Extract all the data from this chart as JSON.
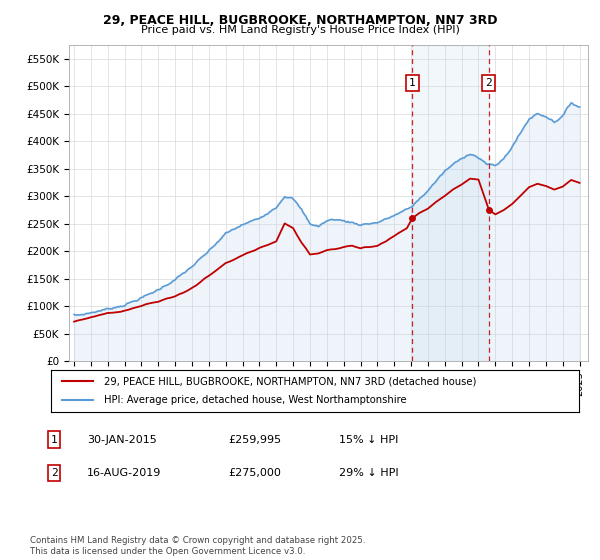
{
  "title": "29, PEACE HILL, BUGBROOKE, NORTHAMPTON, NN7 3RD",
  "subtitle": "Price paid vs. HM Land Registry's House Price Index (HPI)",
  "ylim": [
    0,
    575000
  ],
  "yticks": [
    0,
    50000,
    100000,
    150000,
    200000,
    250000,
    300000,
    350000,
    400000,
    450000,
    500000,
    550000
  ],
  "ytick_labels": [
    "£0",
    "£50K",
    "£100K",
    "£150K",
    "£200K",
    "£250K",
    "£300K",
    "£350K",
    "£400K",
    "£450K",
    "£500K",
    "£550K"
  ],
  "hpi_color": "#5b9bd5",
  "price_color": "#c00000",
  "hpi_fill_alpha": 0.25,
  "hpi_fill_color": "#bdd7ee",
  "marker_color": "#c00000",
  "vline_color": "#c00000",
  "sale1_date": 2015.08,
  "sale1_price": 259995,
  "sale2_date": 2019.62,
  "sale2_price": 275000,
  "legend_label_price": "29, PEACE HILL, BUGBROOKE, NORTHAMPTON, NN7 3RD (detached house)",
  "legend_label_hpi": "HPI: Average price, detached house, West Northamptonshire",
  "footnote": "Contains HM Land Registry data © Crown copyright and database right 2025.\nThis data is licensed under the Open Government Licence v3.0.",
  "background_color": "#ffffff",
  "grid_color": "#d9d9d9",
  "hpi_years": [
    1995.0,
    1995.083,
    1995.167,
    1995.25,
    1995.333,
    1995.417,
    1995.5,
    1995.583,
    1995.667,
    1995.75,
    1995.833,
    1995.917,
    1996.0,
    1996.083,
    1996.167,
    1996.25,
    1996.333,
    1996.417,
    1996.5,
    1996.583,
    1996.667,
    1996.75,
    1996.833,
    1996.917,
    1997.0,
    1997.083,
    1997.167,
    1997.25,
    1997.333,
    1997.417,
    1997.5,
    1997.583,
    1997.667,
    1997.75,
    1997.833,
    1997.917,
    1998.0,
    1998.083,
    1998.167,
    1998.25,
    1998.333,
    1998.417,
    1998.5,
    1998.583,
    1998.667,
    1998.75,
    1998.833,
    1998.917,
    1999.0,
    1999.083,
    1999.167,
    1999.25,
    1999.333,
    1999.417,
    1999.5,
    1999.583,
    1999.667,
    1999.75,
    1999.833,
    1999.917,
    2000.0,
    2000.083,
    2000.167,
    2000.25,
    2000.333,
    2000.417,
    2000.5,
    2000.583,
    2000.667,
    2000.75,
    2000.833,
    2000.917,
    2001.0,
    2001.083,
    2001.167,
    2001.25,
    2001.333,
    2001.417,
    2001.5,
    2001.583,
    2001.667,
    2001.75,
    2001.833,
    2001.917,
    2002.0,
    2002.083,
    2002.167,
    2002.25,
    2002.333,
    2002.417,
    2002.5,
    2002.583,
    2002.667,
    2002.75,
    2002.833,
    2002.917,
    2003.0,
    2003.083,
    2003.167,
    2003.25,
    2003.333,
    2003.417,
    2003.5,
    2003.583,
    2003.667,
    2003.75,
    2003.833,
    2003.917,
    2004.0,
    2004.083,
    2004.167,
    2004.25,
    2004.333,
    2004.417,
    2004.5,
    2004.583,
    2004.667,
    2004.75,
    2004.833,
    2004.917,
    2005.0,
    2005.083,
    2005.167,
    2005.25,
    2005.333,
    2005.417,
    2005.5,
    2005.583,
    2005.667,
    2005.75,
    2005.833,
    2005.917,
    2006.0,
    2006.083,
    2006.167,
    2006.25,
    2006.333,
    2006.417,
    2006.5,
    2006.583,
    2006.667,
    2006.75,
    2006.833,
    2006.917,
    2007.0,
    2007.083,
    2007.167,
    2007.25,
    2007.333,
    2007.417,
    2007.5,
    2007.583,
    2007.667,
    2007.75,
    2007.833,
    2007.917,
    2008.0,
    2008.083,
    2008.167,
    2008.25,
    2008.333,
    2008.417,
    2008.5,
    2008.583,
    2008.667,
    2008.75,
    2008.833,
    2008.917,
    2009.0,
    2009.083,
    2009.167,
    2009.25,
    2009.333,
    2009.417,
    2009.5,
    2009.583,
    2009.667,
    2009.75,
    2009.833,
    2009.917,
    2010.0,
    2010.083,
    2010.167,
    2010.25,
    2010.333,
    2010.417,
    2010.5,
    2010.583,
    2010.667,
    2010.75,
    2010.833,
    2010.917,
    2011.0,
    2011.083,
    2011.167,
    2011.25,
    2011.333,
    2011.417,
    2011.5,
    2011.583,
    2011.667,
    2011.75,
    2011.833,
    2011.917,
    2012.0,
    2012.083,
    2012.167,
    2012.25,
    2012.333,
    2012.417,
    2012.5,
    2012.583,
    2012.667,
    2012.75,
    2012.833,
    2012.917,
    2013.0,
    2013.083,
    2013.167,
    2013.25,
    2013.333,
    2013.417,
    2013.5,
    2013.583,
    2013.667,
    2013.75,
    2013.833,
    2013.917,
    2014.0,
    2014.083,
    2014.167,
    2014.25,
    2014.333,
    2014.417,
    2014.5,
    2014.583,
    2014.667,
    2014.75,
    2014.833,
    2014.917,
    2015.0,
    2015.083,
    2015.167,
    2015.25,
    2015.333,
    2015.417,
    2015.5,
    2015.583,
    2015.667,
    2015.75,
    2015.833,
    2015.917,
    2016.0,
    2016.083,
    2016.167,
    2016.25,
    2016.333,
    2016.417,
    2016.5,
    2016.583,
    2016.667,
    2016.75,
    2016.833,
    2016.917,
    2017.0,
    2017.083,
    2017.167,
    2017.25,
    2017.333,
    2017.417,
    2017.5,
    2017.583,
    2017.667,
    2017.75,
    2017.833,
    2017.917,
    2018.0,
    2018.083,
    2018.167,
    2018.25,
    2018.333,
    2018.417,
    2018.5,
    2018.583,
    2018.667,
    2018.75,
    2018.833,
    2018.917,
    2019.0,
    2019.083,
    2019.167,
    2019.25,
    2019.333,
    2019.417,
    2019.5,
    2019.583,
    2019.667,
    2019.75,
    2019.833,
    2019.917,
    2020.0,
    2020.083,
    2020.167,
    2020.25,
    2020.333,
    2020.417,
    2020.5,
    2020.583,
    2020.667,
    2020.75,
    2020.833,
    2020.917,
    2021.0,
    2021.083,
    2021.167,
    2021.25,
    2021.333,
    2021.417,
    2021.5,
    2021.583,
    2021.667,
    2021.75,
    2021.833,
    2021.917,
    2022.0,
    2022.083,
    2022.167,
    2022.25,
    2022.333,
    2022.417,
    2022.5,
    2022.583,
    2022.667,
    2022.75,
    2022.833,
    2022.917,
    2023.0,
    2023.083,
    2023.167,
    2023.25,
    2023.333,
    2023.417,
    2023.5,
    2023.583,
    2023.667,
    2023.75,
    2023.833,
    2023.917,
    2024.0,
    2024.083,
    2024.167,
    2024.25,
    2024.333,
    2024.417,
    2024.5,
    2024.583,
    2024.667,
    2024.75,
    2024.833,
    2024.917,
    2025.0
  ],
  "price_years": [
    1995.0,
    1995.25,
    1995.5,
    1995.75,
    1996.0,
    1996.25,
    1996.5,
    1996.75,
    1997.0,
    1997.25,
    1997.5,
    1997.75,
    1998.0,
    1998.25,
    1998.5,
    1998.75,
    1999.0,
    1999.25,
    1999.5,
    1999.75,
    2000.0,
    2000.25,
    2000.5,
    2000.75,
    2001.0,
    2001.25,
    2001.5,
    2001.75,
    2002.0,
    2002.25,
    2002.5,
    2002.75,
    2003.0,
    2003.25,
    2003.5,
    2003.75,
    2004.0,
    2004.25,
    2004.5,
    2004.75,
    2005.0,
    2005.25,
    2005.5,
    2005.75,
    2006.0,
    2006.25,
    2006.5,
    2006.75,
    2007.0,
    2007.25,
    2007.5,
    2007.75,
    2008.0,
    2008.25,
    2008.5,
    2008.75,
    2009.0,
    2009.25,
    2009.5,
    2009.75,
    2010.0,
    2010.25,
    2010.5,
    2010.75,
    2011.0,
    2011.25,
    2011.5,
    2011.75,
    2012.0,
    2012.25,
    2012.5,
    2012.75,
    2013.0,
    2013.25,
    2013.5,
    2013.75,
    2014.0,
    2014.25,
    2014.5,
    2014.75,
    2015.08,
    2015.5,
    2016.0,
    2016.5,
    2017.0,
    2017.5,
    2018.0,
    2018.5,
    2019.0,
    2019.62,
    2020.0,
    2020.5,
    2021.0,
    2021.5,
    2022.0,
    2022.5,
    2023.0,
    2023.5,
    2024.0,
    2024.5,
    2025.0
  ]
}
